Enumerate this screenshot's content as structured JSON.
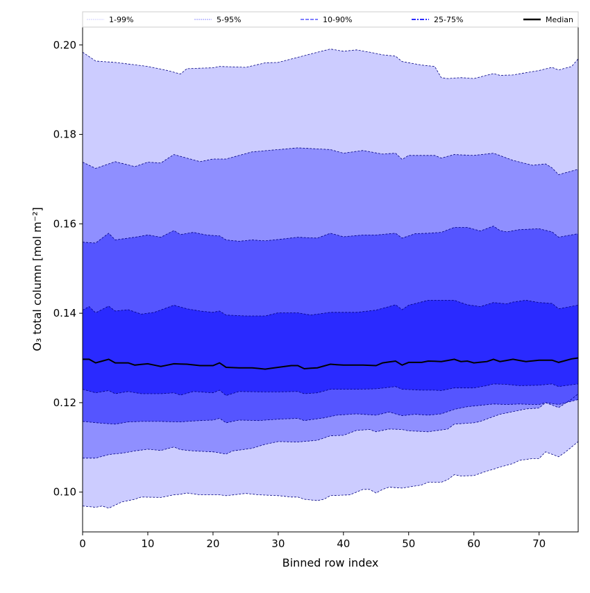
{
  "chart_data": {
    "type": "area",
    "title": "",
    "xlabel": "Binned row index",
    "ylabel": "O₃ total column [mol m⁻²]",
    "xlim": [
      0,
      76
    ],
    "ylim": [
      0.0911,
      0.204
    ],
    "xticks": [
      0,
      10,
      20,
      30,
      40,
      50,
      60,
      70
    ],
    "xtick_labels": [
      "0",
      "10",
      "20",
      "30",
      "40",
      "50",
      "60",
      "70"
    ],
    "yticks": [
      0.1,
      0.12,
      0.14,
      0.16,
      0.18,
      0.2
    ],
    "ytick_labels": [
      "0.10",
      "0.12",
      "0.14",
      "0.16",
      "0.18",
      "0.20"
    ],
    "grid": false,
    "legend_placement": "top, above plot, full width",
    "legend": [
      "1-99%",
      "5-95%",
      "10-90%",
      "25-75%",
      "Median"
    ],
    "colors": {
      "1-99%": "#ccccff",
      "5-95%": "#8f8fff",
      "10-90%": "#5555ff",
      "25-75%": "#2a2aff",
      "Median": "#000000",
      "edge": "#000080"
    },
    "bands": [
      {
        "name": "1-99%",
        "lower": "p1",
        "upper": "p99"
      },
      {
        "name": "5-95%",
        "lower": "p5",
        "upper": "p95"
      },
      {
        "name": "10-90%",
        "lower": "p10",
        "upper": "p90"
      },
      {
        "name": "25-75%",
        "lower": "p25",
        "upper": "p75"
      }
    ],
    "series": {
      "p99": {
        "x": [
          0,
          2,
          5,
          10,
          13,
          15,
          16,
          20,
          21,
          25,
          28,
          30,
          35,
          38,
          40,
          42,
          44,
          46,
          48,
          49,
          52,
          54,
          55,
          56,
          58,
          60,
          63,
          64,
          66,
          70,
          72,
          73,
          75,
          76
        ],
        "y": [
          0.1984,
          0.1964,
          0.1961,
          0.1952,
          0.1943,
          0.1935,
          0.1947,
          0.1949,
          0.1952,
          0.195,
          0.196,
          0.1961,
          0.198,
          0.1991,
          0.1986,
          0.1989,
          0.1984,
          0.1978,
          0.1975,
          0.1963,
          0.1955,
          0.1952,
          0.1927,
          0.1925,
          0.1927,
          0.1925,
          0.1936,
          0.1932,
          0.1933,
          0.1943,
          0.195,
          0.1944,
          0.1952,
          0.1969
        ]
      },
      "p95": {
        "x": [
          0,
          2,
          5,
          8,
          10,
          12,
          14,
          18,
          20,
          22,
          26,
          30,
          33,
          38,
          40,
          43,
          46,
          48,
          49,
          50,
          54,
          55,
          57,
          60,
          63,
          66,
          69,
          71,
          72,
          73,
          76
        ],
        "y": [
          0.1738,
          0.1724,
          0.1739,
          0.1728,
          0.1738,
          0.1736,
          0.1755,
          0.1739,
          0.1745,
          0.1745,
          0.1761,
          0.1766,
          0.177,
          0.1766,
          0.1758,
          0.1764,
          0.1756,
          0.1758,
          0.1744,
          0.1753,
          0.1753,
          0.1747,
          0.1755,
          0.1753,
          0.1758,
          0.1742,
          0.1731,
          0.1734,
          0.1725,
          0.171,
          0.1722
        ]
      },
      "p90": {
        "x": [
          0,
          2,
          4,
          5,
          8,
          10,
          12,
          14,
          15,
          17,
          19,
          21,
          22,
          24,
          26,
          28,
          30,
          33,
          36,
          38,
          40,
          43,
          45,
          48,
          49,
          51,
          53,
          55,
          57,
          59,
          61,
          63,
          64,
          65,
          67,
          70,
          72,
          73,
          76
        ],
        "y": [
          0.1559,
          0.1557,
          0.1579,
          0.1564,
          0.157,
          0.1575,
          0.157,
          0.1585,
          0.1576,
          0.1581,
          0.1575,
          0.1573,
          0.1564,
          0.1561,
          0.1564,
          0.1562,
          0.1565,
          0.157,
          0.1568,
          0.1579,
          0.1571,
          0.1575,
          0.1575,
          0.1579,
          0.1568,
          0.1578,
          0.1579,
          0.1581,
          0.1592,
          0.1592,
          0.1584,
          0.1595,
          0.1585,
          0.1582,
          0.1587,
          0.1589,
          0.1582,
          0.157,
          0.1578
        ]
      },
      "p75": {
        "x": [
          0,
          1,
          2,
          4,
          5,
          7,
          9,
          11,
          14,
          16,
          18,
          20,
          21,
          22,
          25,
          28,
          30,
          33,
          35,
          38,
          40,
          42,
          45,
          48,
          49,
          50,
          53,
          57,
          59,
          61,
          63,
          65,
          66,
          68,
          70,
          72,
          73,
          76
        ],
        "y": [
          0.1407,
          0.1415,
          0.1401,
          0.1416,
          0.1405,
          0.1408,
          0.1398,
          0.1402,
          0.1418,
          0.141,
          0.1405,
          0.1402,
          0.1405,
          0.1396,
          0.1394,
          0.1394,
          0.1401,
          0.1401,
          0.1396,
          0.1402,
          0.1402,
          0.1402,
          0.1407,
          0.1419,
          0.1408,
          0.1418,
          0.1429,
          0.1429,
          0.1419,
          0.1415,
          0.1424,
          0.1421,
          0.1425,
          0.1429,
          0.1424,
          0.1422,
          0.141,
          0.1418
        ]
      },
      "median": {
        "x": [
          0,
          1,
          2,
          4,
          5,
          7,
          8,
          10,
          12,
          14,
          16,
          18,
          20,
          21,
          22,
          24,
          26,
          28,
          30,
          32,
          33,
          34,
          36,
          38,
          40,
          43,
          45,
          46,
          48,
          49,
          50,
          52,
          53,
          55,
          57,
          58,
          59,
          60,
          62,
          63,
          64,
          66,
          68,
          70,
          72,
          73,
          75,
          76
        ],
        "y": [
          0.1297,
          0.1297,
          0.1289,
          0.1297,
          0.1289,
          0.1289,
          0.1284,
          0.1287,
          0.1281,
          0.1287,
          0.1286,
          0.1283,
          0.1283,
          0.1289,
          0.1279,
          0.1278,
          0.1278,
          0.1275,
          0.1279,
          0.1283,
          0.1283,
          0.1276,
          0.1278,
          0.1286,
          0.1284,
          0.1284,
          0.1283,
          0.1289,
          0.1293,
          0.1284,
          0.129,
          0.129,
          0.1293,
          0.1292,
          0.1297,
          0.1292,
          0.1293,
          0.1289,
          0.1292,
          0.1297,
          0.1292,
          0.1297,
          0.1292,
          0.1295,
          0.1295,
          0.129,
          0.1298,
          0.13
        ]
      },
      "p25": {
        "x": [
          0,
          2,
          4,
          5,
          7,
          9,
          12,
          14,
          15,
          17,
          20,
          21,
          22,
          24,
          28,
          30,
          33,
          34,
          36,
          38,
          42,
          45,
          48,
          49,
          52,
          54,
          55,
          57,
          60,
          62,
          63,
          65,
          67,
          70,
          72,
          73,
          76
        ],
        "y": [
          0.123,
          0.1222,
          0.1227,
          0.122,
          0.1225,
          0.122,
          0.122,
          0.1222,
          0.1217,
          0.1225,
          0.1222,
          0.1228,
          0.1216,
          0.1225,
          0.1224,
          0.1224,
          0.1225,
          0.122,
          0.1222,
          0.123,
          0.123,
          0.1231,
          0.1236,
          0.123,
          0.1228,
          0.1228,
          0.1227,
          0.1233,
          0.1233,
          0.1238,
          0.1242,
          0.1241,
          0.1238,
          0.1239,
          0.1242,
          0.1236,
          0.1242
        ]
      },
      "p10": {
        "x": [
          0,
          3,
          5,
          7,
          9,
          12,
          15,
          18,
          20,
          21,
          22,
          24,
          27,
          30,
          33,
          34,
          37,
          39,
          42,
          45,
          47,
          49,
          51,
          53,
          55,
          57,
          59,
          61,
          63,
          65,
          67,
          69,
          70,
          71,
          73,
          76
        ],
        "y": [
          0.1158,
          0.1154,
          0.1152,
          0.1157,
          0.1158,
          0.1158,
          0.1157,
          0.116,
          0.1161,
          0.1165,
          0.1155,
          0.1161,
          0.116,
          0.1163,
          0.1165,
          0.116,
          0.1166,
          0.1172,
          0.1175,
          0.1172,
          0.1179,
          0.1171,
          0.1174,
          0.1172,
          0.1175,
          0.1185,
          0.1191,
          0.1194,
          0.1197,
          0.1196,
          0.1197,
          0.1196,
          0.1196,
          0.12,
          0.1196,
          0.1207
        ]
      },
      "p5": {
        "x": [
          0,
          2,
          4,
          6,
          8,
          10,
          12,
          14,
          15,
          17,
          20,
          22,
          23,
          26,
          28,
          30,
          33,
          36,
          38,
          40,
          42,
          44,
          45,
          47,
          49,
          50,
          53,
          56,
          57,
          60,
          61,
          63,
          64,
          66,
          68,
          70,
          71,
          73,
          75,
          76
        ],
        "y": [
          0.1076,
          0.1076,
          0.1084,
          0.1087,
          0.1092,
          0.1096,
          0.1093,
          0.1101,
          0.1095,
          0.1092,
          0.109,
          0.1085,
          0.1092,
          0.1098,
          0.1107,
          0.1113,
          0.1112,
          0.1116,
          0.1126,
          0.1127,
          0.1138,
          0.114,
          0.1135,
          0.1141,
          0.114,
          0.1137,
          0.1135,
          0.1141,
          0.1152,
          0.1155,
          0.1158,
          0.1169,
          0.1174,
          0.118,
          0.1186,
          0.1188,
          0.12,
          0.1189,
          0.1208,
          0.122
        ]
      },
      "p1": {
        "x": [
          0,
          2,
          3,
          4,
          6,
          8,
          9,
          12,
          14,
          15,
          16,
          18,
          21,
          22,
          25,
          27,
          30,
          32,
          33,
          34,
          36,
          37,
          38,
          41,
          43,
          44,
          45,
          46,
          47,
          49,
          52,
          53,
          55,
          56,
          57,
          58,
          60,
          62,
          63,
          64,
          66,
          67,
          69,
          70,
          71,
          73,
          74,
          76
        ],
        "y": [
          0.0969,
          0.0966,
          0.0969,
          0.0964,
          0.0978,
          0.0984,
          0.0989,
          0.0988,
          0.0994,
          0.0995,
          0.0998,
          0.0994,
          0.0994,
          0.0992,
          0.0997,
          0.0994,
          0.0992,
          0.0989,
          0.0989,
          0.0984,
          0.0981,
          0.0984,
          0.0992,
          0.0994,
          0.1006,
          0.1006,
          0.0998,
          0.1006,
          0.1011,
          0.1009,
          0.1016,
          0.1022,
          0.1022,
          0.1028,
          0.1039,
          0.1036,
          0.1037,
          0.1047,
          0.1051,
          0.1056,
          0.1064,
          0.1071,
          0.1075,
          0.1075,
          0.109,
          0.1079,
          0.1089,
          0.1113
        ]
      }
    }
  }
}
